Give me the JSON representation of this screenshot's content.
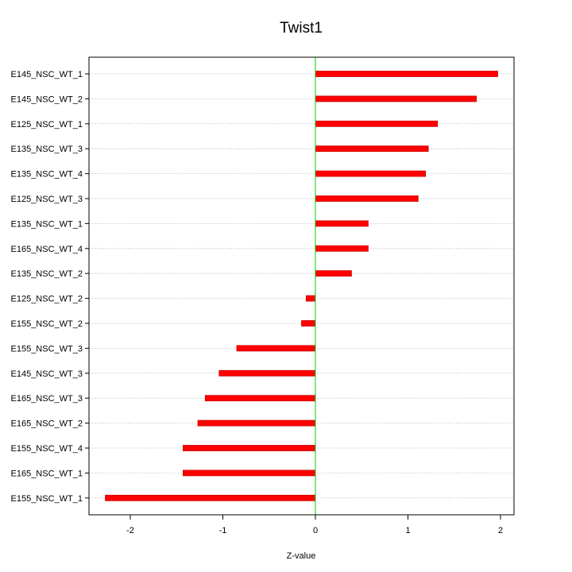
{
  "chart_data": {
    "type": "bar",
    "orientation": "horizontal",
    "title": "Twist1",
    "xlabel": "Z-value",
    "ylabel": "",
    "xlim": [
      -2.4,
      2.15
    ],
    "xticks": [
      -2,
      -1,
      0,
      1,
      2
    ],
    "xtick_labels": [
      "-2",
      "-1",
      "0",
      "1",
      "2"
    ],
    "grid": true,
    "zero_line": true,
    "categories": [
      "E145_NSC_WT_1",
      "E145_NSC_WT_2",
      "E125_NSC_WT_1",
      "E135_NSC_WT_3",
      "E135_NSC_WT_4",
      "E125_NSC_WT_3",
      "E135_NSC_WT_1",
      "E165_NSC_WT_4",
      "E135_NSC_WT_2",
      "E125_NSC_WT_2",
      "E155_NSC_WT_2",
      "E155_NSC_WT_3",
      "E145_NSC_WT_3",
      "E165_NSC_WT_3",
      "E165_NSC_WT_2",
      "E155_NSC_WT_4",
      "E165_NSC_WT_1",
      "E155_NSC_WT_1"
    ],
    "values": [
      1.97,
      1.74,
      1.32,
      1.22,
      1.19,
      1.11,
      0.57,
      0.57,
      0.39,
      -0.1,
      -0.15,
      -0.85,
      -1.04,
      -1.19,
      -1.27,
      -1.43,
      -1.43,
      -2.27
    ],
    "colors": {
      "bar": "#ff0000",
      "bar_border": "#cc0000",
      "zero_line": "#00cc00",
      "grid": "#bbbbbb",
      "axis": "#000000"
    }
  }
}
